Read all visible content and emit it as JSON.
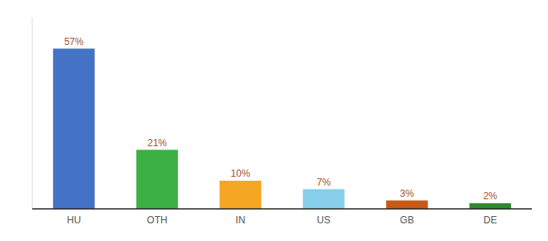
{
  "chart_data": {
    "type": "bar",
    "categories": [
      "HU",
      "OTH",
      "IN",
      "US",
      "GB",
      "DE"
    ],
    "values": [
      57,
      21,
      10,
      7,
      3,
      2
    ],
    "value_labels": [
      "57%",
      "21%",
      "10%",
      "7%",
      "3%",
      "2%"
    ],
    "colors": [
      "#4472c4",
      "#3cb043",
      "#f5a623",
      "#87ceeb",
      "#c85a17",
      "#2d8a2d"
    ],
    "ylim": [
      0,
      68
    ],
    "grid": false,
    "data_labels": true,
    "tick_labels": "x"
  }
}
